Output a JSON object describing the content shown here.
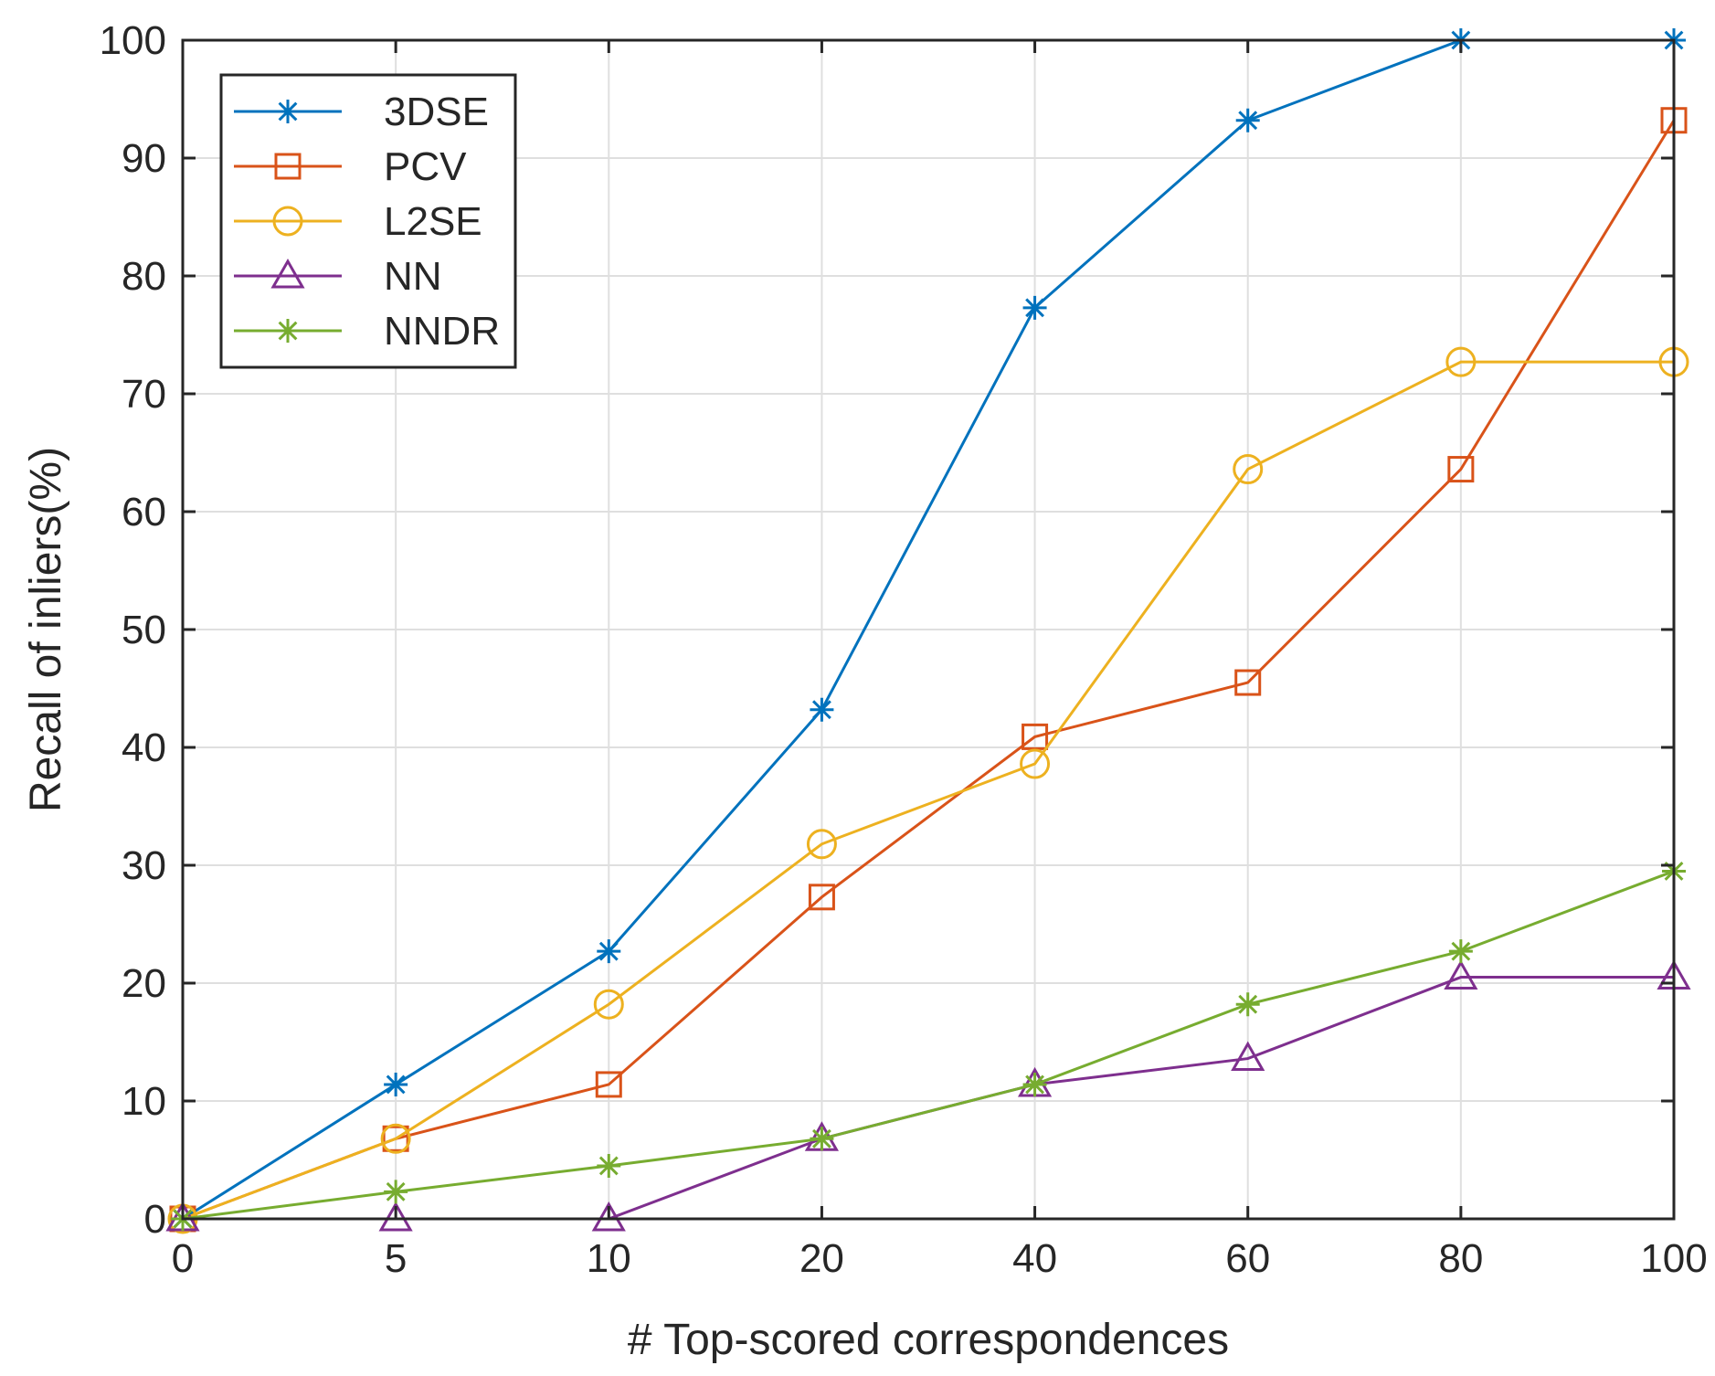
{
  "chart_data": {
    "type": "line",
    "title": "",
    "xlabel": "# Top-scored correspondences",
    "ylabel": "Recall of inliers(%)",
    "categories": [
      "0",
      "5",
      "10",
      "20",
      "40",
      "60",
      "80",
      "100"
    ],
    "ylim": [
      0,
      100
    ],
    "yticks": [
      0,
      10,
      20,
      30,
      40,
      50,
      60,
      70,
      80,
      90,
      100
    ],
    "grid": true,
    "legend_position": "top-left",
    "series": [
      {
        "name": "3DSE",
        "color": "#0072BD",
        "marker": "asterisk",
        "values": [
          0,
          11.4,
          22.7,
          43.2,
          77.3,
          93.2,
          100,
          100
        ]
      },
      {
        "name": "PCV",
        "color": "#D95319",
        "marker": "square",
        "values": [
          0,
          6.8,
          11.4,
          27.3,
          40.9,
          45.5,
          63.6,
          93.2
        ]
      },
      {
        "name": "L2SE",
        "color": "#EDB120",
        "marker": "circle",
        "values": [
          0,
          6.8,
          18.2,
          31.8,
          38.6,
          63.6,
          72.7,
          72.7
        ]
      },
      {
        "name": "NN",
        "color": "#7E2F8E",
        "marker": "triangle",
        "values": [
          0,
          0,
          0,
          6.8,
          11.4,
          13.6,
          20.5,
          20.5
        ]
      },
      {
        "name": "NNDR",
        "color": "#77AC30",
        "marker": "asterisk",
        "values": [
          0,
          2.3,
          4.5,
          6.8,
          11.4,
          18.2,
          22.7,
          29.5
        ]
      }
    ]
  }
}
